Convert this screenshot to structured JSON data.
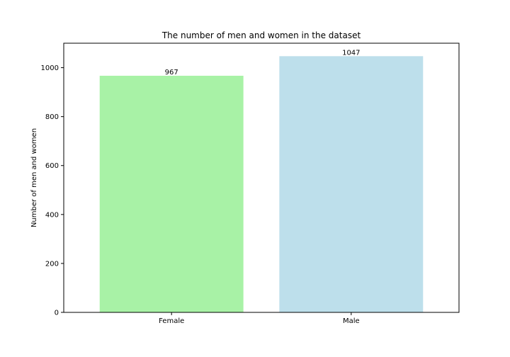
{
  "chart_data": {
    "type": "bar",
    "title": "The number of men and women in the dataset",
    "xlabel": "",
    "ylabel": "Number of men and women",
    "categories": [
      "Female",
      "Male"
    ],
    "values": [
      967,
      1047
    ],
    "data_labels": [
      "967",
      "1047"
    ],
    "colors": [
      "#a8f2a6",
      "#bddfeb"
    ],
    "ylim": [
      0,
      1100
    ],
    "yticks": [
      0,
      200,
      400,
      600,
      800,
      1000
    ],
    "grid": false,
    "legend": "none"
  }
}
